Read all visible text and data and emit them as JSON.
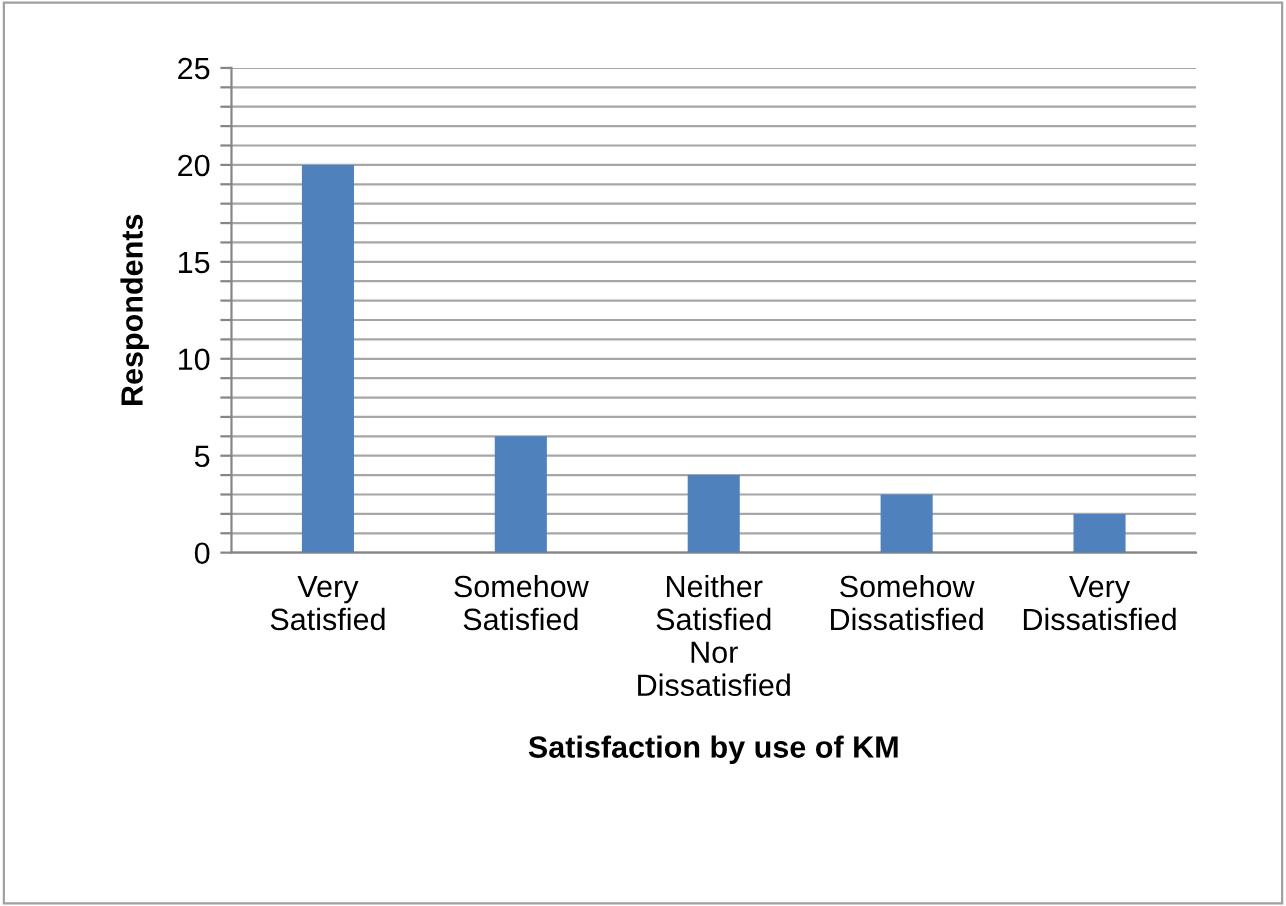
{
  "chart_data": {
    "type": "bar",
    "xlabel": "Satisfaction by use of KM",
    "ylabel": "Respondents",
    "categories": [
      "Very\nSatisfied",
      "Somehow\nSatisfied",
      "Neither\nSatisfied\nNor\nDissatisfied",
      "Somehow\nDissatisfied",
      "Very\nDissatisfied"
    ],
    "values": [
      20,
      6,
      4,
      3,
      2
    ],
    "color": "#4f81bd",
    "ylim": [
      0,
      25
    ],
    "yticks": [
      0,
      {
        "value": 1,
        "label": null
      },
      {
        "value": 2,
        "label": null
      },
      {
        "value": 3,
        "label": null
      },
      {
        "value": 4,
        "label": null
      },
      5,
      {
        "value": 6,
        "label": null
      },
      {
        "value": 7,
        "label": null
      },
      {
        "value": 8,
        "label": null
      },
      {
        "value": 9,
        "label": null
      },
      10,
      {
        "value": 11,
        "label": null
      },
      {
        "value": 12,
        "label": null
      },
      {
        "value": 13,
        "label": null
      },
      {
        "value": 14,
        "label": null
      },
      15,
      {
        "value": 16,
        "label": null
      },
      {
        "value": 17,
        "label": null
      },
      {
        "value": 18,
        "label": null
      },
      {
        "value": 19,
        "label": null
      },
      20,
      {
        "value": 21,
        "label": null
      },
      {
        "value": 22,
        "label": null
      },
      {
        "value": 23,
        "label": null
      },
      {
        "value": 24,
        "label": null
      },
      25
    ],
    "grid": "y",
    "legend": false
  }
}
